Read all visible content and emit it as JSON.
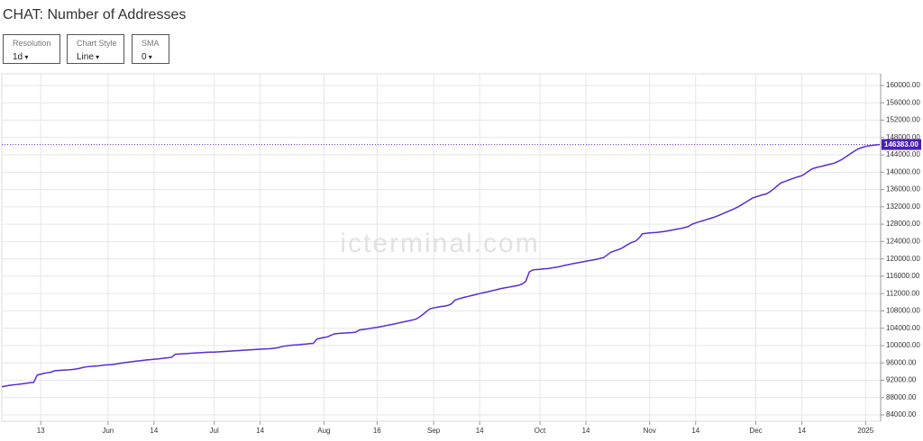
{
  "chart_data": {
    "type": "line",
    "title": "CHAT: Number of Addresses",
    "controls": [
      {
        "label": "Resolution",
        "value": "1d"
      },
      {
        "label": "Chart Style",
        "value": "Line"
      },
      {
        "label": "SMA",
        "value": "0"
      }
    ],
    "watermark": "icterminal.com",
    "color": "#5b2bd4",
    "last_label": "146383.00",
    "grid": true,
    "ylim": [
      82550,
      162700
    ],
    "yticks": [
      {
        "value": 84000,
        "label": "84000.00"
      },
      {
        "value": 88000,
        "label": "88000.00"
      },
      {
        "value": 92000,
        "label": "92000.00"
      },
      {
        "value": 96000,
        "label": "96000.00"
      },
      {
        "value": 100000,
        "label": "100000.00"
      },
      {
        "value": 104000,
        "label": "104000.00"
      },
      {
        "value": 108000,
        "label": "108000.00"
      },
      {
        "value": 112000,
        "label": "112000.00"
      },
      {
        "value": 116000,
        "label": "116000.00"
      },
      {
        "value": 120000,
        "label": "120000.00"
      },
      {
        "value": 124000,
        "label": "124000.00"
      },
      {
        "value": 128000,
        "label": "128000.00"
      },
      {
        "value": 132000,
        "label": "132000.00"
      },
      {
        "value": 136000,
        "label": "136000.00"
      },
      {
        "value": 140000,
        "label": "140000.00"
      },
      {
        "value": 144000,
        "label": "144000.00"
      },
      {
        "value": 148000,
        "label": "148000.00"
      },
      {
        "value": 152000,
        "label": "152000.00"
      },
      {
        "value": 156000,
        "label": "156000.00"
      },
      {
        "value": 160000,
        "label": "160000.00"
      }
    ],
    "categories": [
      null,
      null,
      null,
      null,
      null,
      null,
      null,
      null,
      null,
      null,
      null,
      "13",
      null,
      null,
      null,
      null,
      null,
      null,
      null,
      null,
      null,
      null,
      null,
      null,
      null,
      null,
      null,
      null,
      null,
      null,
      "Jun",
      null,
      null,
      null,
      null,
      null,
      null,
      null,
      null,
      null,
      null,
      null,
      null,
      "14",
      null,
      null,
      null,
      null,
      null,
      null,
      null,
      null,
      null,
      null,
      null,
      null,
      null,
      null,
      null,
      null,
      "Jul",
      null,
      null,
      null,
      null,
      null,
      null,
      null,
      null,
      null,
      null,
      null,
      null,
      "14",
      null,
      null,
      null,
      null,
      null,
      null,
      null,
      null,
      null,
      null,
      null,
      null,
      null,
      null,
      null,
      null,
      null,
      "Aug",
      null,
      null,
      null,
      null,
      null,
      null,
      null,
      null,
      null,
      null,
      null,
      null,
      null,
      null,
      "16",
      null,
      null,
      null,
      null,
      null,
      null,
      null,
      null,
      null,
      null,
      null,
      null,
      null,
      null,
      null,
      "Sep",
      null,
      null,
      null,
      null,
      null,
      null,
      null,
      null,
      null,
      null,
      null,
      null,
      "14",
      null,
      null,
      null,
      null,
      null,
      null,
      null,
      null,
      null,
      null,
      null,
      null,
      null,
      null,
      null,
      null,
      "Oct",
      null,
      null,
      null,
      null,
      null,
      null,
      null,
      null,
      null,
      null,
      null,
      null,
      "14",
      null,
      null,
      null,
      null,
      null,
      null,
      null,
      null,
      null,
      null,
      null,
      null,
      null,
      null,
      null,
      null,
      null,
      "Nov",
      null,
      null,
      null,
      null,
      null,
      null,
      null,
      null,
      null,
      null,
      null,
      null,
      "14",
      null,
      null,
      null,
      null,
      null,
      null,
      null,
      null,
      null,
      null,
      null,
      null,
      null,
      null,
      null,
      null,
      "Dec",
      null,
      null,
      null,
      null,
      null,
      null,
      null,
      null,
      null,
      null,
      null,
      null,
      "14",
      null,
      null,
      null,
      null,
      null,
      null,
      null,
      null,
      null,
      null,
      null,
      null,
      null,
      null,
      null,
      null,
      null,
      "2025",
      null,
      null,
      null,
      null
    ],
    "values": [
      90500,
      90650,
      90800,
      90900,
      91000,
      91100,
      91200,
      91300,
      91450,
      91500,
      93200,
      93400,
      93600,
      93750,
      93900,
      94200,
      94250,
      94300,
      94350,
      94400,
      94500,
      94600,
      94750,
      94950,
      95100,
      95200,
      95250,
      95300,
      95400,
      95500,
      95550,
      95600,
      95700,
      95850,
      96000,
      96100,
      96200,
      96300,
      96400,
      96500,
      96600,
      96700,
      96750,
      96850,
      96900,
      97000,
      97100,
      97200,
      97300,
      98000,
      98050,
      98100,
      98150,
      98200,
      98250,
      98300,
      98350,
      98400,
      98450,
      98500,
      98500,
      98550,
      98600,
      98650,
      98700,
      98750,
      98800,
      98850,
      98900,
      98950,
      99000,
      99050,
      99100,
      99150,
      99200,
      99250,
      99300,
      99400,
      99500,
      99750,
      99900,
      100000,
      100100,
      100150,
      100200,
      100300,
      100350,
      100450,
      100500,
      101500,
      101700,
      101850,
      102000,
      102400,
      102700,
      102800,
      102850,
      102900,
      102950,
      103000,
      103100,
      103600,
      103700,
      103800,
      103950,
      104100,
      104200,
      104350,
      104500,
      104700,
      104850,
      105000,
      105200,
      105400,
      105550,
      105700,
      105900,
      106100,
      106600,
      107200,
      107900,
      108500,
      108700,
      108850,
      109000,
      109100,
      109250,
      109600,
      110500,
      110750,
      111000,
      111200,
      111400,
      111600,
      111800,
      112000,
      112200,
      112350,
      112550,
      112750,
      112950,
      113150,
      113300,
      113450,
      113600,
      113750,
      113900,
      114200,
      114800,
      117000,
      117450,
      117550,
      117600,
      117700,
      117750,
      117850,
      118000,
      118100,
      118300,
      118500,
      118650,
      118850,
      119000,
      119150,
      119300,
      119450,
      119600,
      119750,
      119900,
      120100,
      120300,
      120900,
      121500,
      121800,
      122100,
      122400,
      122900,
      123400,
      123800,
      124100,
      124800,
      125800,
      125900,
      126000,
      126050,
      126100,
      126200,
      126300,
      126450,
      126600,
      126750,
      126900,
      127050,
      127250,
      127500,
      128000,
      128300,
      128550,
      128800,
      129050,
      129300,
      129550,
      129850,
      130200,
      130550,
      130900,
      131250,
      131600,
      132000,
      132500,
      133000,
      133500,
      134000,
      134300,
      134550,
      134800,
      135000,
      135500,
      136100,
      136800,
      137500,
      137800,
      138100,
      138400,
      138700,
      138950,
      139200,
      139700,
      140300,
      140800,
      141050,
      141250,
      141450,
      141650,
      141850,
      142050,
      142400,
      142800,
      143300,
      143850,
      144400,
      144950,
      145400,
      145700,
      145950,
      146100,
      146200,
      146300,
      146383
    ]
  }
}
